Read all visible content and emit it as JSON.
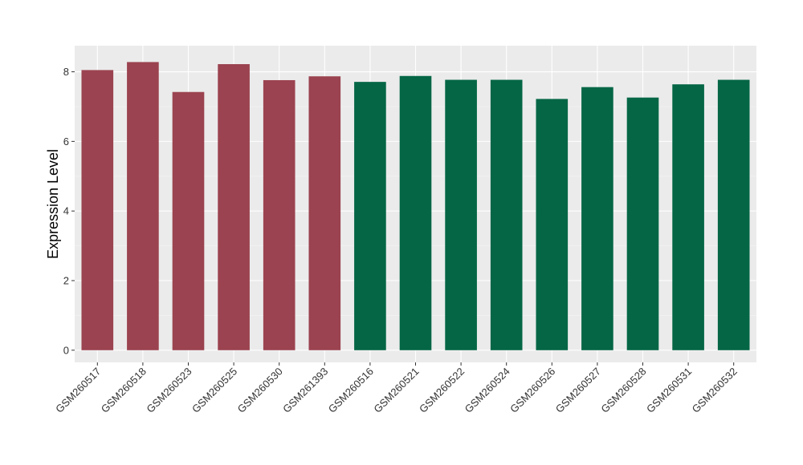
{
  "chart_data": {
    "type": "bar",
    "title": "",
    "xlabel": "",
    "ylabel": "Expression Level",
    "ylim": [
      -0.35,
      8.75
    ],
    "yticks": [
      0,
      2,
      4,
      6,
      8
    ],
    "grid": true,
    "legend": "none",
    "categories": [
      "GSM260517",
      "GSM260518",
      "GSM260523",
      "GSM260525",
      "GSM260530",
      "GSM261393",
      "GSM260516",
      "GSM260521",
      "GSM260522",
      "GSM260524",
      "GSM260526",
      "GSM260527",
      "GSM260528",
      "GSM260531",
      "GSM260532"
    ],
    "values": [
      8.05,
      8.28,
      7.42,
      8.22,
      7.76,
      7.87,
      7.71,
      7.88,
      7.77,
      7.77,
      7.22,
      7.56,
      7.26,
      7.64,
      7.77
    ],
    "groups": [
      "a",
      "a",
      "a",
      "a",
      "a",
      "a",
      "b",
      "b",
      "b",
      "b",
      "b",
      "b",
      "b",
      "b",
      "b"
    ],
    "group_colors": {
      "a": "#9B4350",
      "b": "#046645"
    }
  },
  "style": {
    "panel_background": "#EBEBEB",
    "grid_major": "#FFFFFF",
    "grid_minor": "#F5F5F5",
    "tick_color": "#333333"
  }
}
